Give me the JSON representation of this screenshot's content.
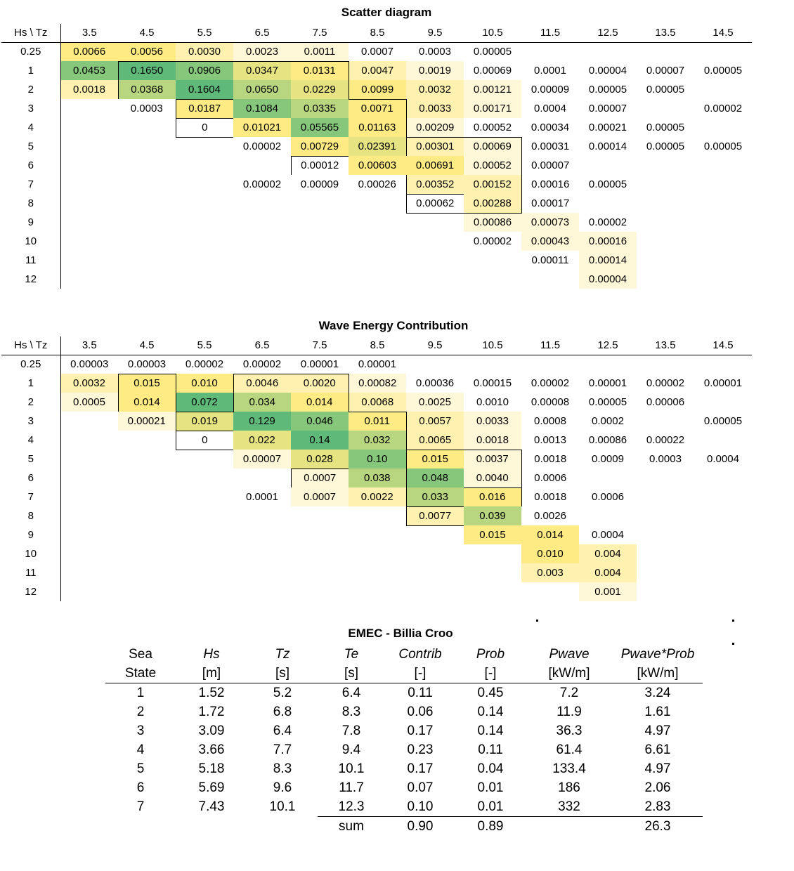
{
  "scatter": {
    "title": "Scatter diagram",
    "corner": "Hs \\ Tz",
    "columns": [
      "3.5",
      "4.5",
      "5.5",
      "6.5",
      "7.5",
      "8.5",
      "9.5",
      "10.5",
      "11.5",
      "12.5",
      "13.5",
      "14.5"
    ],
    "rows": [
      {
        "h": "0.25",
        "cells": [
          "0.0066",
          "0.0056",
          "0.0030",
          "0.0023",
          "0.0011",
          "0.0007",
          "0.0003",
          "0.00005",
          "",
          "",
          "",
          ""
        ]
      },
      {
        "h": "1",
        "cells": [
          "0.0453",
          "0.1650",
          "0.0906",
          "0.0347",
          "0.0131",
          "0.0047",
          "0.0019",
          "0.00069",
          "0.0001",
          "0.00004",
          "0.00007",
          "0.00005"
        ]
      },
      {
        "h": "2",
        "cells": [
          "0.0018",
          "0.0368",
          "0.1604",
          "0.0650",
          "0.0229",
          "0.0099",
          "0.0032",
          "0.00121",
          "0.00009",
          "0.00005",
          "0.00005",
          ""
        ]
      },
      {
        "h": "3",
        "cells": [
          "",
          "0.0003",
          "0.0187",
          "0.1084",
          "0.0335",
          "0.0071",
          "0.0033",
          "0.00171",
          "0.0004",
          "0.00007",
          "",
          "0.00002"
        ]
      },
      {
        "h": "4",
        "cells": [
          "",
          "",
          "0",
          "0.01021",
          "0.05565",
          "0.01163",
          "0.00209",
          "0.00052",
          "0.00034",
          "0.00021",
          "0.00005",
          ""
        ]
      },
      {
        "h": "5",
        "cells": [
          "",
          "",
          "",
          "0.00002",
          "0.00729",
          "0.02391",
          "0.00301",
          "0.00069",
          "0.00031",
          "0.00014",
          "0.00005",
          "0.00005"
        ]
      },
      {
        "h": "6",
        "cells": [
          "",
          "",
          "",
          "",
          "0.00012",
          "0.00603",
          "0.00691",
          "0.00052",
          "0.00007",
          "",
          "",
          ""
        ]
      },
      {
        "h": "7",
        "cells": [
          "",
          "",
          "",
          "0.00002",
          "0.00009",
          "0.00026",
          "0.00352",
          "0.00152",
          "0.00016",
          "0.00005",
          "",
          ""
        ]
      },
      {
        "h": "8",
        "cells": [
          "",
          "",
          "",
          "",
          "",
          "",
          "0.00062",
          "0.00288",
          "0.00017",
          "",
          "",
          ""
        ]
      },
      {
        "h": "9",
        "cells": [
          "",
          "",
          "",
          "",
          "",
          "",
          "",
          "0.00086",
          "0.00073",
          "0.00002",
          "",
          ""
        ]
      },
      {
        "h": "10",
        "cells": [
          "",
          "",
          "",
          "",
          "",
          "",
          "",
          "0.00002",
          "0.00043",
          "0.00016",
          "",
          ""
        ]
      },
      {
        "h": "11",
        "cells": [
          "",
          "",
          "",
          "",
          "",
          "",
          "",
          "",
          "0.00011",
          "0.00014",
          "",
          ""
        ]
      },
      {
        "h": "12",
        "cells": [
          "",
          "",
          "",
          "",
          "",
          "",
          "",
          "",
          "",
          "0.00004",
          "",
          ""
        ]
      }
    ],
    "colors": [
      [
        3,
        3,
        2,
        1,
        1,
        0,
        0,
        0,
        0,
        0,
        0,
        0
      ],
      [
        6,
        7,
        6,
        4,
        3,
        2,
        1,
        0,
        0,
        0,
        0,
        0
      ],
      [
        2,
        5,
        7,
        5,
        4,
        3,
        2,
        1,
        0,
        0,
        0,
        0
      ],
      [
        0,
        0,
        3,
        6,
        5,
        3,
        2,
        1,
        0,
        0,
        0,
        0
      ],
      [
        0,
        0,
        0,
        3,
        6,
        3,
        1,
        0,
        0,
        0,
        0,
        0
      ],
      [
        0,
        0,
        0,
        0,
        3,
        4,
        2,
        1,
        0,
        0,
        0,
        0
      ],
      [
        0,
        0,
        0,
        0,
        0,
        3,
        3,
        1,
        0,
        0,
        0,
        0
      ],
      [
        0,
        0,
        0,
        0,
        0,
        0,
        2,
        2,
        0,
        0,
        0,
        0
      ],
      [
        0,
        0,
        0,
        0,
        0,
        0,
        0,
        2,
        0,
        0,
        0,
        0
      ],
      [
        0,
        0,
        0,
        0,
        0,
        0,
        0,
        1,
        1,
        0,
        0,
        0
      ],
      [
        0,
        0,
        0,
        0,
        0,
        0,
        0,
        0,
        1,
        1,
        0,
        0
      ],
      [
        0,
        0,
        0,
        0,
        0,
        0,
        0,
        0,
        0,
        1,
        0,
        0
      ],
      [
        0,
        0,
        0,
        0,
        0,
        0,
        0,
        0,
        0,
        1,
        0,
        0
      ]
    ]
  },
  "energy": {
    "title": "Wave Energy Contribution",
    "corner": "Hs \\ Tz",
    "columns": [
      "3.5",
      "4.5",
      "5.5",
      "6.5",
      "7.5",
      "8.5",
      "9.5",
      "10.5",
      "11.5",
      "12.5",
      "13.5",
      "14.5"
    ],
    "rows": [
      {
        "h": "0.25",
        "cells": [
          "0.00003",
          "0.00003",
          "0.00002",
          "0.00002",
          "0.00001",
          "0.00001",
          "",
          "",
          "",
          "",
          "",
          ""
        ]
      },
      {
        "h": "1",
        "cells": [
          "0.0032",
          "0.015",
          "0.010",
          "0.0046",
          "0.0020",
          "0.00082",
          "0.00036",
          "0.00015",
          "0.00002",
          "0.00001",
          "0.00002",
          "0.00001"
        ]
      },
      {
        "h": "2",
        "cells": [
          "0.0005",
          "0.014",
          "0.072",
          "0.034",
          "0.014",
          "0.0068",
          "0.0025",
          "0.0010",
          "0.00008",
          "0.00005",
          "0.00006",
          ""
        ]
      },
      {
        "h": "3",
        "cells": [
          "",
          "0.00021",
          "0.019",
          "0.129",
          "0.046",
          "0.011",
          "0.0057",
          "0.0033",
          "0.0008",
          "0.0002",
          "",
          "0.00005"
        ]
      },
      {
        "h": "4",
        "cells": [
          "",
          "",
          "0",
          "0.022",
          "0.14",
          "0.032",
          "0.0065",
          "0.0018",
          "0.0013",
          "0.00086",
          "0.00022",
          ""
        ]
      },
      {
        "h": "5",
        "cells": [
          "",
          "",
          "",
          "0.00007",
          "0.028",
          "0.10",
          "0.015",
          "0.0037",
          "0.0018",
          "0.0009",
          "0.0003",
          "0.0004"
        ]
      },
      {
        "h": "6",
        "cells": [
          "",
          "",
          "",
          "",
          "0.0007",
          "0.038",
          "0.048",
          "0.0040",
          "0.0006",
          "",
          "",
          ""
        ]
      },
      {
        "h": "7",
        "cells": [
          "",
          "",
          "",
          "0.0001",
          "0.0007",
          "0.0022",
          "0.033",
          "0.016",
          "0.0018",
          "0.0006",
          "",
          ""
        ]
      },
      {
        "h": "8",
        "cells": [
          "",
          "",
          "",
          "",
          "",
          "",
          "0.0077",
          "0.039",
          "0.0026",
          "",
          "",
          ""
        ]
      },
      {
        "h": "9",
        "cells": [
          "",
          "",
          "",
          "",
          "",
          "",
          "",
          "0.015",
          "0.014",
          "0.0004",
          "",
          ""
        ]
      },
      {
        "h": "10",
        "cells": [
          "",
          "",
          "",
          "",
          "",
          "",
          "",
          "",
          "0.010",
          "0.004",
          "",
          ""
        ]
      },
      {
        "h": "11",
        "cells": [
          "",
          "",
          "",
          "",
          "",
          "",
          "",
          "",
          "0.003",
          "0.004",
          "",
          ""
        ]
      },
      {
        "h": "12",
        "cells": [
          "",
          "",
          "",
          "",
          "",
          "",
          "",
          "",
          "",
          "0.001",
          "",
          ""
        ]
      }
    ],
    "colors": [
      [
        0,
        0,
        0,
        0,
        0,
        0,
        0,
        0,
        0,
        0,
        0,
        0
      ],
      [
        2,
        3,
        3,
        2,
        2,
        1,
        0,
        0,
        0,
        0,
        0,
        0
      ],
      [
        1,
        3,
        7,
        5,
        3,
        2,
        1,
        0,
        0,
        0,
        0,
        0
      ],
      [
        0,
        1,
        4,
        7,
        6,
        3,
        2,
        1,
        0,
        0,
        0,
        0
      ],
      [
        0,
        0,
        0,
        4,
        7,
        5,
        2,
        1,
        0,
        0,
        0,
        0
      ],
      [
        0,
        0,
        0,
        1,
        4,
        6,
        3,
        1,
        0,
        0,
        0,
        0
      ],
      [
        0,
        0,
        0,
        0,
        1,
        5,
        6,
        1,
        0,
        0,
        0,
        0
      ],
      [
        0,
        0,
        0,
        0,
        1,
        2,
        5,
        3,
        0,
        0,
        0,
        0
      ],
      [
        0,
        0,
        0,
        0,
        0,
        0,
        2,
        5,
        0,
        0,
        0,
        0
      ],
      [
        0,
        0,
        0,
        0,
        0,
        0,
        0,
        3,
        3,
        0,
        0,
        0
      ],
      [
        0,
        0,
        0,
        0,
        0,
        0,
        0,
        0,
        3,
        2,
        0,
        0
      ],
      [
        0,
        0,
        0,
        0,
        0,
        0,
        0,
        0,
        2,
        2,
        0,
        0
      ],
      [
        0,
        0,
        0,
        0,
        0,
        0,
        0,
        0,
        0,
        1,
        0,
        0
      ]
    ]
  },
  "emec": {
    "title": "EMEC - Billia Croo",
    "headers": [
      "Sea",
      "Hs",
      "Tz",
      "Te",
      "Contrib",
      "Prob",
      "Pwave",
      "Pwave*Prob"
    ],
    "units": [
      "State",
      "[m]",
      "[s]",
      "[s]",
      "[-]",
      "[-]",
      "[kW/m]",
      "[kW/m]"
    ],
    "rows": [
      [
        "1",
        "1.52",
        "5.2",
        "6.4",
        "0.11",
        "0.45",
        "7.2",
        "3.24"
      ],
      [
        "2",
        "1.72",
        "6.8",
        "8.3",
        "0.06",
        "0.14",
        "11.9",
        "1.61"
      ],
      [
        "3",
        "3.09",
        "6.4",
        "7.8",
        "0.17",
        "0.14",
        "36.3",
        "4.97"
      ],
      [
        "4",
        "3.66",
        "7.7",
        "9.4",
        "0.23",
        "0.11",
        "61.4",
        "6.61"
      ],
      [
        "5",
        "5.18",
        "8.3",
        "10.1",
        "0.17",
        "0.04",
        "133.4",
        "4.97"
      ],
      [
        "6",
        "5.69",
        "9.6",
        "11.7",
        "0.07",
        "0.01",
        "186",
        "2.06"
      ],
      [
        "7",
        "7.43",
        "10.1",
        "12.3",
        "0.10",
        "0.01",
        "332",
        "2.83"
      ]
    ],
    "sum": {
      "label": "sum",
      "contrib": "0.90",
      "prob": "0.89",
      "pwaveprob": "26.3"
    }
  }
}
